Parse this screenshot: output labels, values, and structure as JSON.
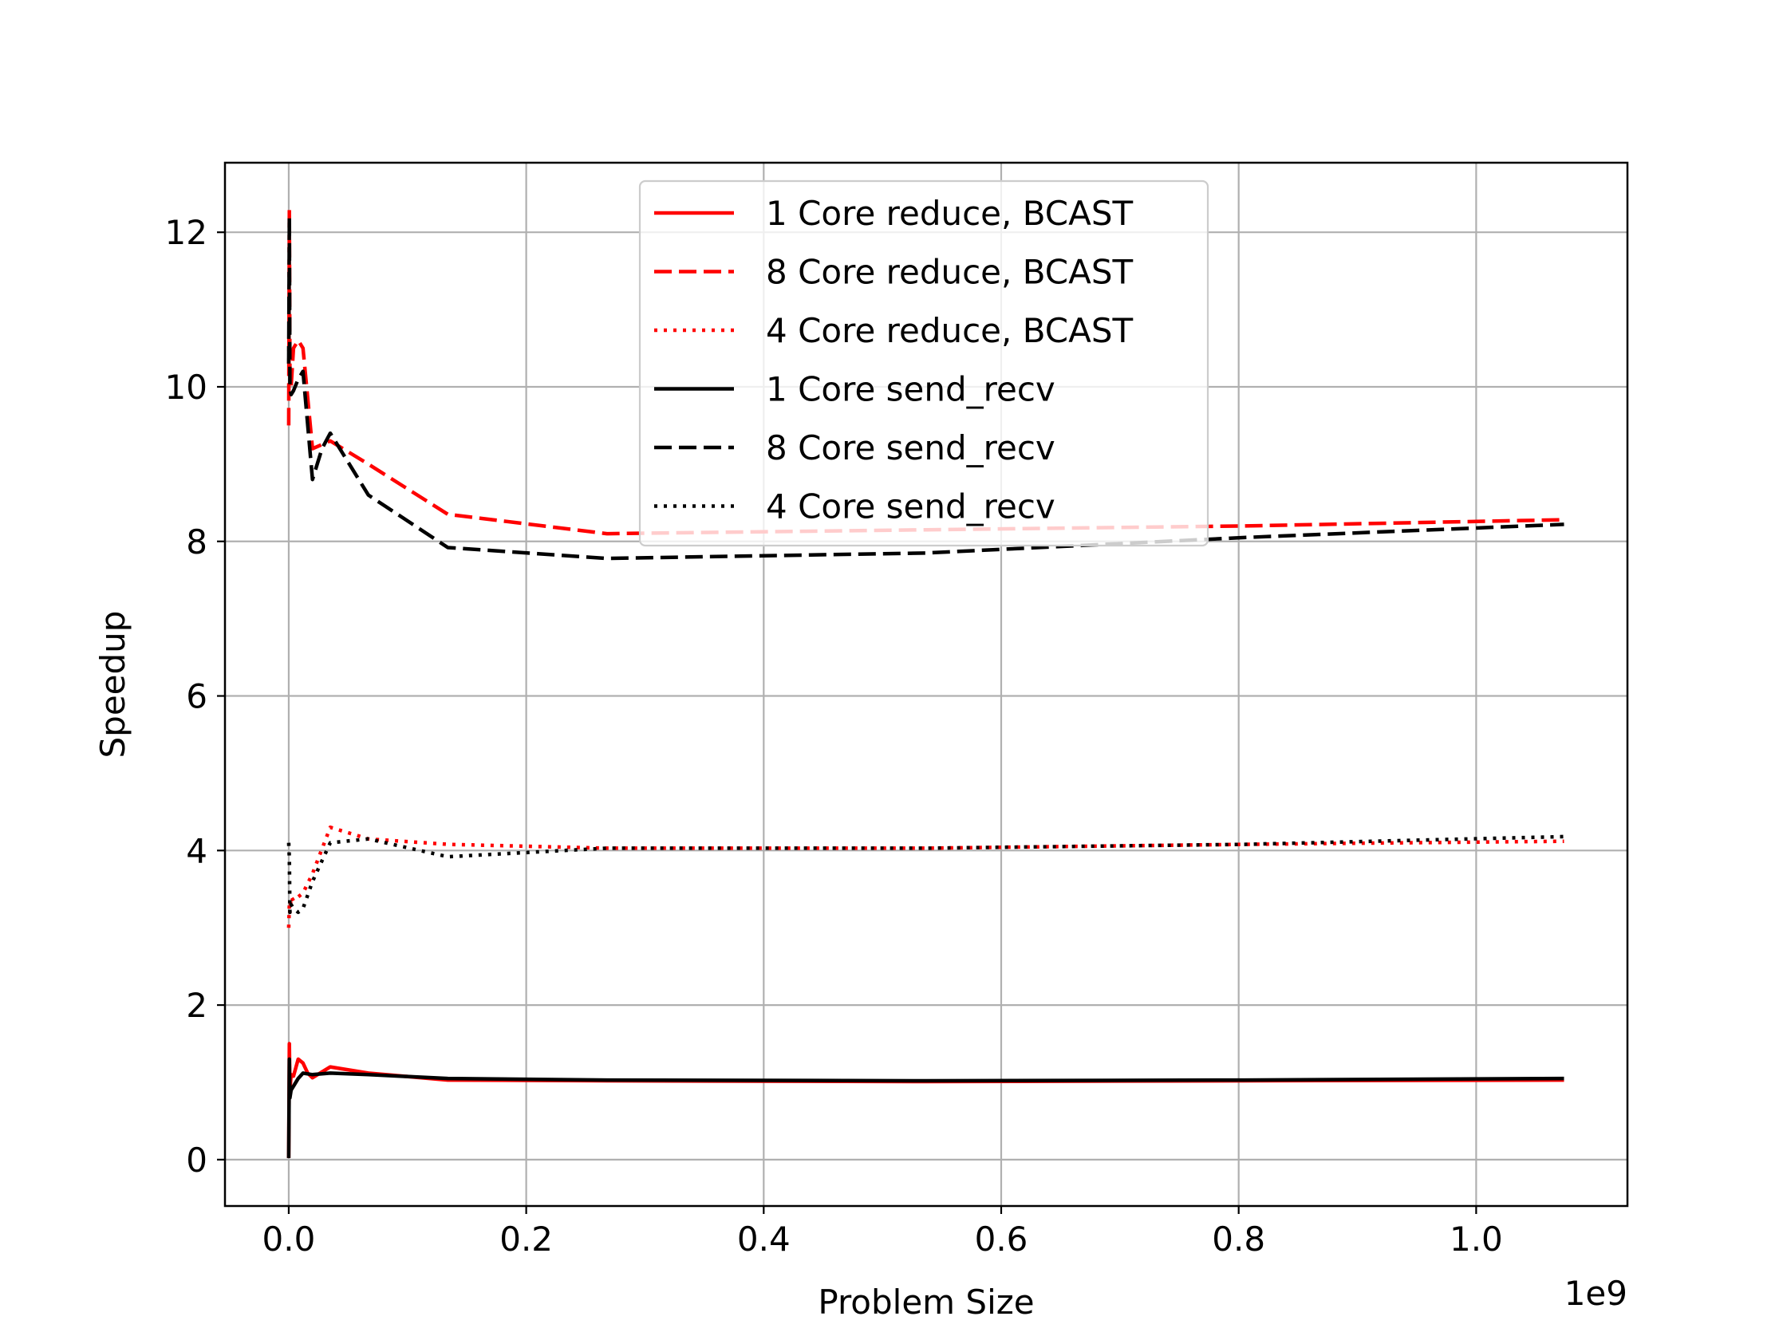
{
  "chart_data": {
    "type": "line",
    "xlabel": "Problem Size",
    "ylabel": "Speedup",
    "x_offset_label": "1e9",
    "xlim": [
      -0.0537,
      1.1274
    ],
    "ylim": [
      -0.6,
      12.9
    ],
    "xticks": [
      0.0,
      0.2,
      0.4,
      0.6,
      0.8,
      1.0
    ],
    "xtick_labels": [
      "0.0",
      "0.2",
      "0.4",
      "0.6",
      "0.8",
      "1.0"
    ],
    "yticks": [
      0,
      2,
      4,
      6,
      8,
      10,
      12
    ],
    "ytick_labels": [
      "0",
      "2",
      "4",
      "6",
      "8",
      "10",
      "12"
    ],
    "grid": true,
    "legend_position": "top-center",
    "series": [
      {
        "name": "1 Core reduce, BCAST",
        "color": "#ff0000",
        "dash": "solid",
        "x": [
          0,
          0.0005,
          0.001,
          0.002,
          0.004,
          0.008,
          0.012,
          0.016,
          0.02,
          0.035,
          0.067,
          0.134,
          0.268,
          0.537,
          0.805,
          1.074
        ],
        "y": [
          0.02,
          1.5,
          0.9,
          1.1,
          1.08,
          1.3,
          1.25,
          1.12,
          1.06,
          1.2,
          1.12,
          1.03,
          1.02,
          1.01,
          1.02,
          1.03
        ]
      },
      {
        "name": "8 Core reduce, BCAST",
        "color": "#ff0000",
        "dash": "dashed",
        "x": [
          0,
          0.0005,
          0.001,
          0.002,
          0.004,
          0.008,
          0.012,
          0.02,
          0.035,
          0.067,
          0.134,
          0.268,
          0.537,
          0.805,
          1.074
        ],
        "y": [
          9.5,
          12.3,
          10.2,
          10.0,
          10.5,
          10.6,
          10.5,
          9.2,
          9.3,
          9.0,
          8.35,
          8.1,
          8.15,
          8.2,
          8.28
        ]
      },
      {
        "name": "4 Core reduce, BCAST",
        "color": "#ff0000",
        "dash": "dotted",
        "x": [
          0,
          0.0005,
          0.001,
          0.002,
          0.004,
          0.008,
          0.012,
          0.02,
          0.035,
          0.067,
          0.134,
          0.268,
          0.537,
          0.805,
          1.074
        ],
        "y": [
          3.0,
          3.3,
          3.2,
          3.4,
          3.35,
          3.4,
          3.45,
          3.7,
          4.3,
          4.15,
          4.08,
          4.03,
          4.03,
          4.08,
          4.12
        ]
      },
      {
        "name": "1 Core send_recv",
        "color": "#000000",
        "dash": "solid",
        "x": [
          0,
          0.0005,
          0.001,
          0.002,
          0.004,
          0.008,
          0.012,
          0.02,
          0.035,
          0.067,
          0.134,
          0.268,
          0.537,
          0.805,
          1.074
        ],
        "y": [
          0.02,
          1.3,
          0.8,
          0.9,
          0.95,
          1.05,
          1.12,
          1.1,
          1.12,
          1.1,
          1.05,
          1.03,
          1.02,
          1.03,
          1.05
        ]
      },
      {
        "name": "8 Core send_recv",
        "color": "#000000",
        "dash": "dashed",
        "x": [
          0,
          0.0005,
          0.001,
          0.002,
          0.004,
          0.008,
          0.012,
          0.02,
          0.028,
          0.035,
          0.067,
          0.134,
          0.268,
          0.537,
          0.805,
          1.074
        ],
        "y": [
          10.3,
          12.2,
          10.0,
          9.9,
          9.95,
          10.1,
          10.2,
          8.8,
          9.2,
          9.4,
          8.6,
          7.92,
          7.78,
          7.85,
          8.05,
          8.22
        ]
      },
      {
        "name": "4 Core send_recv",
        "color": "#000000",
        "dash": "dotted",
        "x": [
          0,
          0.0005,
          0.001,
          0.002,
          0.004,
          0.008,
          0.012,
          0.02,
          0.035,
          0.067,
          0.134,
          0.268,
          0.537,
          0.805,
          1.074
        ],
        "y": [
          4.1,
          3.9,
          3.2,
          3.3,
          3.25,
          3.2,
          3.25,
          3.6,
          4.1,
          4.15,
          3.92,
          4.03,
          4.03,
          4.08,
          4.18
        ]
      }
    ]
  }
}
